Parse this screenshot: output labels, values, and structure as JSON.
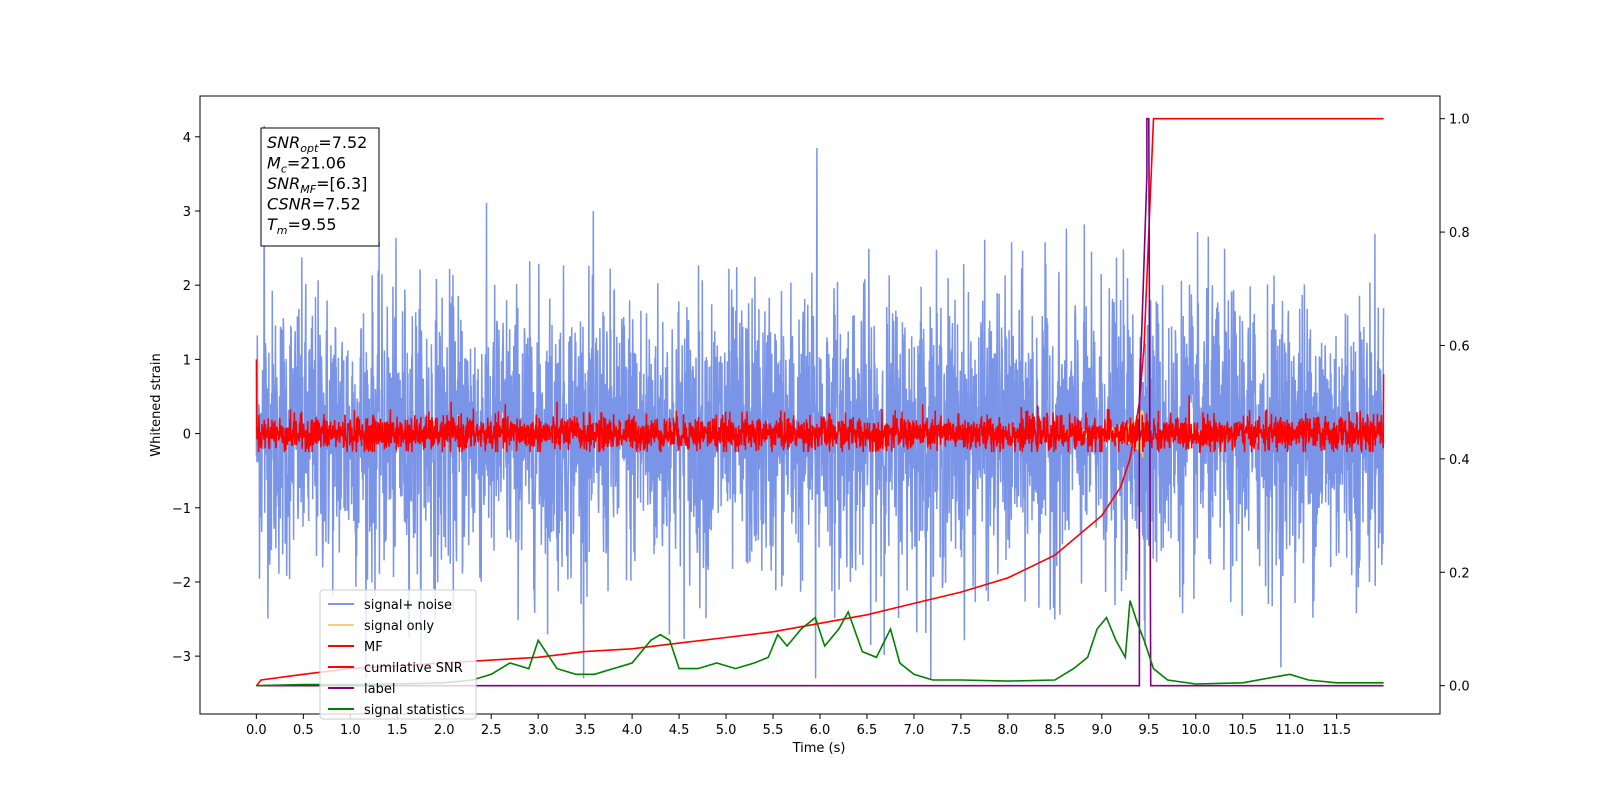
{
  "chart_data": {
    "type": "line",
    "xlabel": "Time (s)",
    "ylabel": "Whitened strain",
    "xlim": [
      -0.6,
      12.6
    ],
    "ylim": [
      -3.78,
      4.55
    ],
    "y2lim": [
      -0.05,
      1.04
    ],
    "xticks": [
      "0.0",
      "0.5",
      "1.0",
      "1.5",
      "2.0",
      "2.5",
      "3.0",
      "3.5",
      "4.0",
      "4.5",
      "5.0",
      "5.5",
      "6.0",
      "6.5",
      "7.0",
      "7.5",
      "8.0",
      "8.5",
      "9.0",
      "9.5",
      "10.0",
      "10.5",
      "11.0",
      "11.5"
    ],
    "yticks": [
      "4",
      "3",
      "2",
      "1",
      "0",
      "−1",
      "−2",
      "−3"
    ],
    "y2ticks": [
      "1.0",
      "0.8",
      "0.6",
      "0.4",
      "0.2",
      "0.0"
    ],
    "grid": false,
    "legend_position": "lower-left",
    "annotation": {
      "lines": [
        {
          "sym": "SNR",
          "sub": "opt",
          "val": "=7.52"
        },
        {
          "sym": "M",
          "sub": "c",
          "val": "=21.06"
        },
        {
          "sym": "SNR",
          "sub": "MF",
          "val": "=[6.3]"
        },
        {
          "sym": "CSNR",
          "sub": "",
          "val": "=7.52"
        },
        {
          "sym": "T",
          "sub": "m",
          "val": "=9.55"
        }
      ]
    },
    "series": [
      {
        "name": "signal+ noise",
        "color": "#7a94e8",
        "axis": "left",
        "style": "noise",
        "amplitude": 2.6,
        "peak": 4.15,
        "min": -3.3
      },
      {
        "name": "signal only",
        "color": "#f5d07a",
        "axis": "left",
        "style": "chirp",
        "merger_time": 9.45,
        "peak_amplitude": 0.5
      },
      {
        "name": "MF",
        "color": "#ff0000",
        "axis": "left",
        "style": "noise",
        "amplitude": 0.3,
        "start_value": 1.0,
        "end_value": 0.8
      },
      {
        "name": "cumilative SNR",
        "color": "#ff0000",
        "axis": "right",
        "x": [
          0.0,
          0.05,
          0.5,
          1.0,
          1.5,
          2.0,
          2.5,
          3.0,
          3.5,
          4.0,
          4.5,
          5.0,
          5.5,
          6.0,
          6.5,
          7.0,
          7.5,
          8.0,
          8.5,
          9.0,
          9.2,
          9.3,
          9.4,
          9.45,
          9.5,
          9.55,
          12.0
        ],
        "y": [
          0.0,
          0.01,
          0.02,
          0.03,
          0.035,
          0.04,
          0.045,
          0.05,
          0.06,
          0.065,
          0.075,
          0.085,
          0.095,
          0.11,
          0.125,
          0.145,
          0.165,
          0.19,
          0.23,
          0.3,
          0.35,
          0.4,
          0.5,
          0.6,
          0.8,
          1.0,
          1.0
        ]
      },
      {
        "name": "label",
        "color": "#800080",
        "axis": "right",
        "x": [
          0.0,
          9.4,
          9.4,
          9.48,
          9.48,
          9.5,
          9.52,
          9.52,
          12.0
        ],
        "y": [
          0.0,
          0.0,
          0.5,
          0.9,
          1.0,
          1.0,
          0.0,
          0.0,
          0.0
        ]
      },
      {
        "name": "signal statistics",
        "color": "#008000",
        "axis": "right",
        "x": [
          0.0,
          0.5,
          1.0,
          1.5,
          2.0,
          2.3,
          2.5,
          2.7,
          2.9,
          3.0,
          3.2,
          3.4,
          3.6,
          3.8,
          4.0,
          4.2,
          4.3,
          4.4,
          4.5,
          4.7,
          4.9,
          5.1,
          5.3,
          5.45,
          5.55,
          5.65,
          5.8,
          5.95,
          6.05,
          6.2,
          6.3,
          6.45,
          6.6,
          6.75,
          6.85,
          7.0,
          7.2,
          7.5,
          8.0,
          8.5,
          8.7,
          8.85,
          8.95,
          9.05,
          9.15,
          9.25,
          9.3,
          9.38,
          9.45,
          9.55,
          9.7,
          10.0,
          10.5,
          11.0,
          11.2,
          11.5,
          12.0
        ],
        "y": [
          0.0,
          0.002,
          0.002,
          0.003,
          0.005,
          0.01,
          0.02,
          0.04,
          0.03,
          0.08,
          0.03,
          0.02,
          0.02,
          0.03,
          0.04,
          0.08,
          0.09,
          0.08,
          0.03,
          0.03,
          0.04,
          0.03,
          0.04,
          0.05,
          0.09,
          0.07,
          0.1,
          0.12,
          0.07,
          0.1,
          0.13,
          0.06,
          0.05,
          0.1,
          0.04,
          0.02,
          0.01,
          0.01,
          0.008,
          0.01,
          0.03,
          0.05,
          0.1,
          0.12,
          0.08,
          0.05,
          0.15,
          0.11,
          0.08,
          0.03,
          0.01,
          0.003,
          0.005,
          0.02,
          0.01,
          0.005,
          0.005
        ]
      }
    ]
  }
}
